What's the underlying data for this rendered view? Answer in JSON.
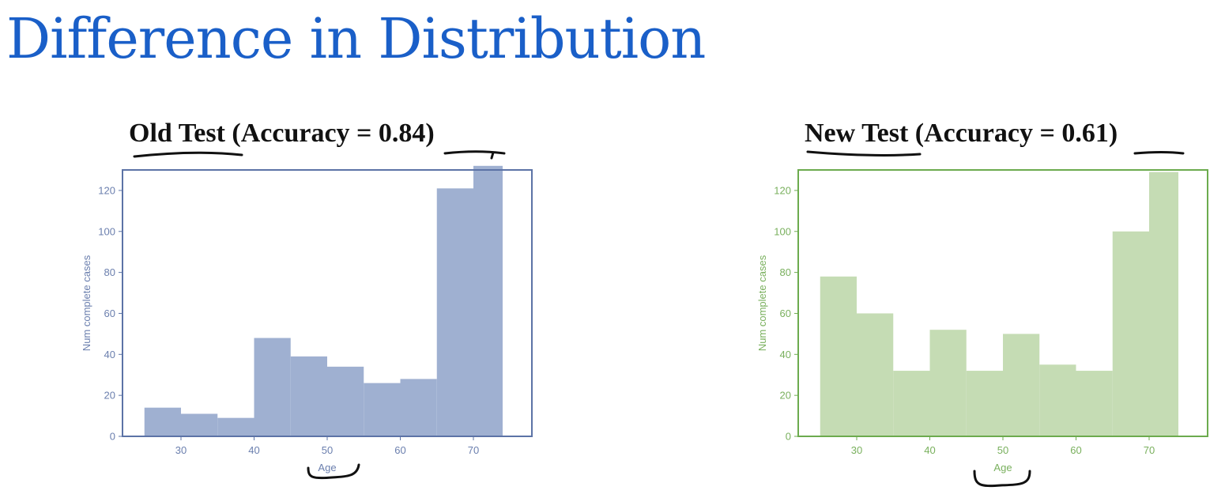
{
  "slide": {
    "title": "Difference in Distribution",
    "title_color": "#1a5fc8"
  },
  "panels": [
    {
      "heading_name": "Old Test",
      "heading_prefix": " (Accuracy = ",
      "heading_value": "0.84",
      "heading_suffix": ")"
    },
    {
      "heading_name": "New Test",
      "heading_prefix": " (Accuracy = ",
      "heading_value": "0.61",
      "heading_suffix": ")"
    }
  ],
  "chart_data": [
    {
      "type": "bar",
      "xlabel": "Age",
      "ylabel": "Num complete cases",
      "x_ticks": [
        30,
        40,
        50,
        60,
        70
      ],
      "y_ticks": [
        0,
        20,
        40,
        60,
        80,
        100,
        120
      ],
      "xlim": [
        22,
        78
      ],
      "ylim": [
        0,
        130
      ],
      "grid": false,
      "bins": [
        {
          "x0": 25,
          "x1": 30,
          "value": 14
        },
        {
          "x0": 30,
          "x1": 35,
          "value": 11
        },
        {
          "x0": 35,
          "x1": 40,
          "value": 9
        },
        {
          "x0": 40,
          "x1": 45,
          "value": 48
        },
        {
          "x0": 45,
          "x1": 50,
          "value": 39
        },
        {
          "x0": 50,
          "x1": 55,
          "value": 34
        },
        {
          "x0": 55,
          "x1": 60,
          "value": 26
        },
        {
          "x0": 60,
          "x1": 65,
          "value": 28
        },
        {
          "x0": 65,
          "x1": 70,
          "value": 121
        },
        {
          "x0": 70,
          "x1": 74,
          "value": 132
        }
      ],
      "bar_color": "#9fb0d1",
      "axis_color": "#5c73a6",
      "text_color": "#6b7fae"
    },
    {
      "type": "bar",
      "xlabel": "Age",
      "ylabel": "Num complete cases",
      "x_ticks": [
        30,
        40,
        50,
        60,
        70
      ],
      "y_ticks": [
        0,
        20,
        40,
        60,
        80,
        100,
        120
      ],
      "xlim": [
        22,
        78
      ],
      "ylim": [
        0,
        130
      ],
      "grid": false,
      "bins": [
        {
          "x0": 25,
          "x1": 30,
          "value": 78
        },
        {
          "x0": 30,
          "x1": 35,
          "value": 60
        },
        {
          "x0": 35,
          "x1": 40,
          "value": 32
        },
        {
          "x0": 40,
          "x1": 45,
          "value": 52
        },
        {
          "x0": 45,
          "x1": 50,
          "value": 32
        },
        {
          "x0": 50,
          "x1": 55,
          "value": 50
        },
        {
          "x0": 55,
          "x1": 60,
          "value": 35
        },
        {
          "x0": 60,
          "x1": 65,
          "value": 32
        },
        {
          "x0": 65,
          "x1": 70,
          "value": 100
        },
        {
          "x0": 70,
          "x1": 74,
          "value": 129
        }
      ],
      "bar_color": "#c5dcb4",
      "axis_color": "#6cab4e",
      "text_color": "#79b05d"
    }
  ]
}
